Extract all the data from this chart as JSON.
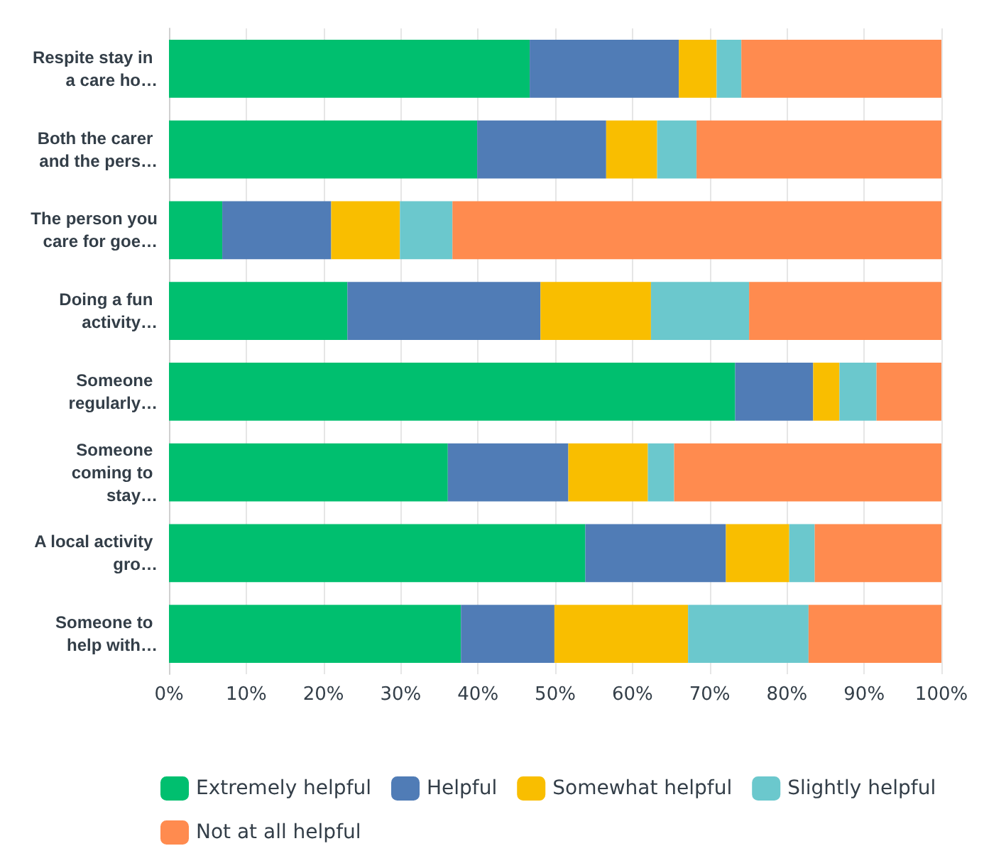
{
  "chart_data": {
    "type": "bar",
    "orientation": "horizontal",
    "stacked": true,
    "categories": [
      "Respite stay in a care ho…",
      "Both the carer and the pers…",
      "The person you care for goe…",
      "Doing a fun activity…",
      "Someone regularly…",
      "Someone coming to stay…",
      "A local activity gro…",
      "Someone to help with…"
    ],
    "series": [
      {
        "name": "Extremely helpful",
        "color": "#00bf6f",
        "values": [
          46.7,
          39.9,
          6.9,
          23.1,
          73.3,
          36.1,
          53.9,
          37.8
        ]
      },
      {
        "name": "Helpful",
        "color": "#507cb6",
        "values": [
          19.3,
          16.7,
          14.1,
          25.0,
          10.1,
          15.6,
          18.2,
          12.1
        ]
      },
      {
        "name": "Somewhat helpful",
        "color": "#f9be00",
        "values": [
          4.9,
          6.6,
          8.9,
          14.3,
          3.4,
          10.3,
          8.2,
          17.3
        ]
      },
      {
        "name": "Slightly helpful",
        "color": "#6bc8cd",
        "values": [
          3.2,
          5.1,
          6.8,
          12.7,
          4.8,
          3.4,
          3.3,
          15.6
        ]
      },
      {
        "name": "Not at all helpful",
        "color": "#ff8b4f",
        "values": [
          25.9,
          31.7,
          63.3,
          24.9,
          8.4,
          34.6,
          16.4,
          17.2
        ]
      }
    ],
    "xlim": [
      0,
      100
    ],
    "xticks": [
      {
        "value": 0,
        "label": "0%"
      },
      {
        "value": 10,
        "label": "10%"
      },
      {
        "value": 20,
        "label": "20%"
      },
      {
        "value": 30,
        "label": "30%"
      },
      {
        "value": 40,
        "label": "40%"
      },
      {
        "value": 50,
        "label": "50%"
      },
      {
        "value": 60,
        "label": "60%"
      },
      {
        "value": 70,
        "label": "70%"
      },
      {
        "value": 80,
        "label": "80%"
      },
      {
        "value": 90,
        "label": "90%"
      },
      {
        "value": 100,
        "label": "100%"
      }
    ],
    "grid": "x",
    "legend": "bottom"
  }
}
